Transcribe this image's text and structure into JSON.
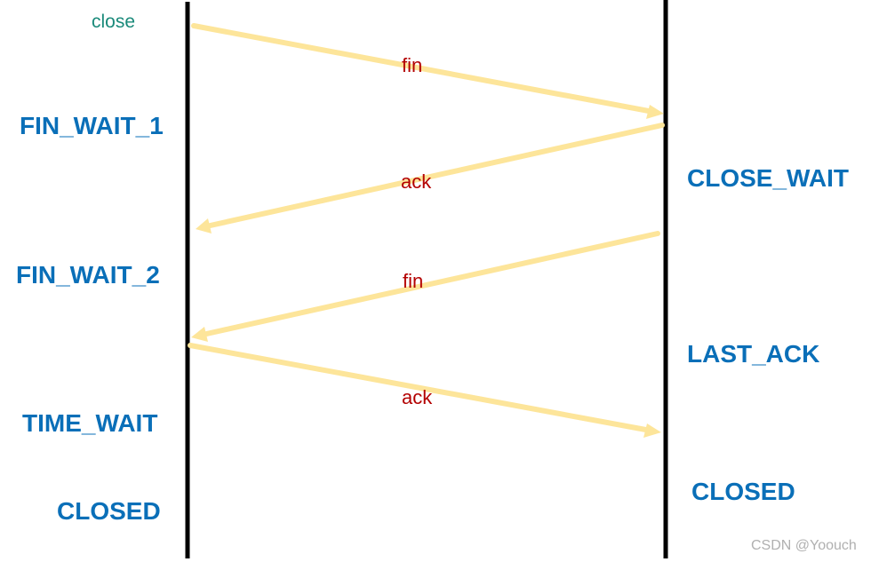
{
  "colors": {
    "state_text": "#0a6fb8",
    "message_text": "#b30000",
    "trigger_text": "#1a8a7a",
    "arrow": "#fde59a",
    "lifeline": "#000000",
    "watermark": "#b0b0b0"
  },
  "trigger": {
    "label": "close"
  },
  "client_states": [
    "FIN_WAIT_1",
    "FIN_WAIT_2",
    "TIME_WAIT",
    "CLOSED"
  ],
  "server_states": [
    "CLOSE_WAIT",
    "LAST_ACK",
    "CLOSED"
  ],
  "messages": [
    {
      "label": "fin",
      "direction": "client-to-server"
    },
    {
      "label": "ack",
      "direction": "server-to-client"
    },
    {
      "label": "fin",
      "direction": "server-to-client"
    },
    {
      "label": "ack",
      "direction": "client-to-server"
    }
  ],
  "watermark": "CSDN @Yoouch"
}
